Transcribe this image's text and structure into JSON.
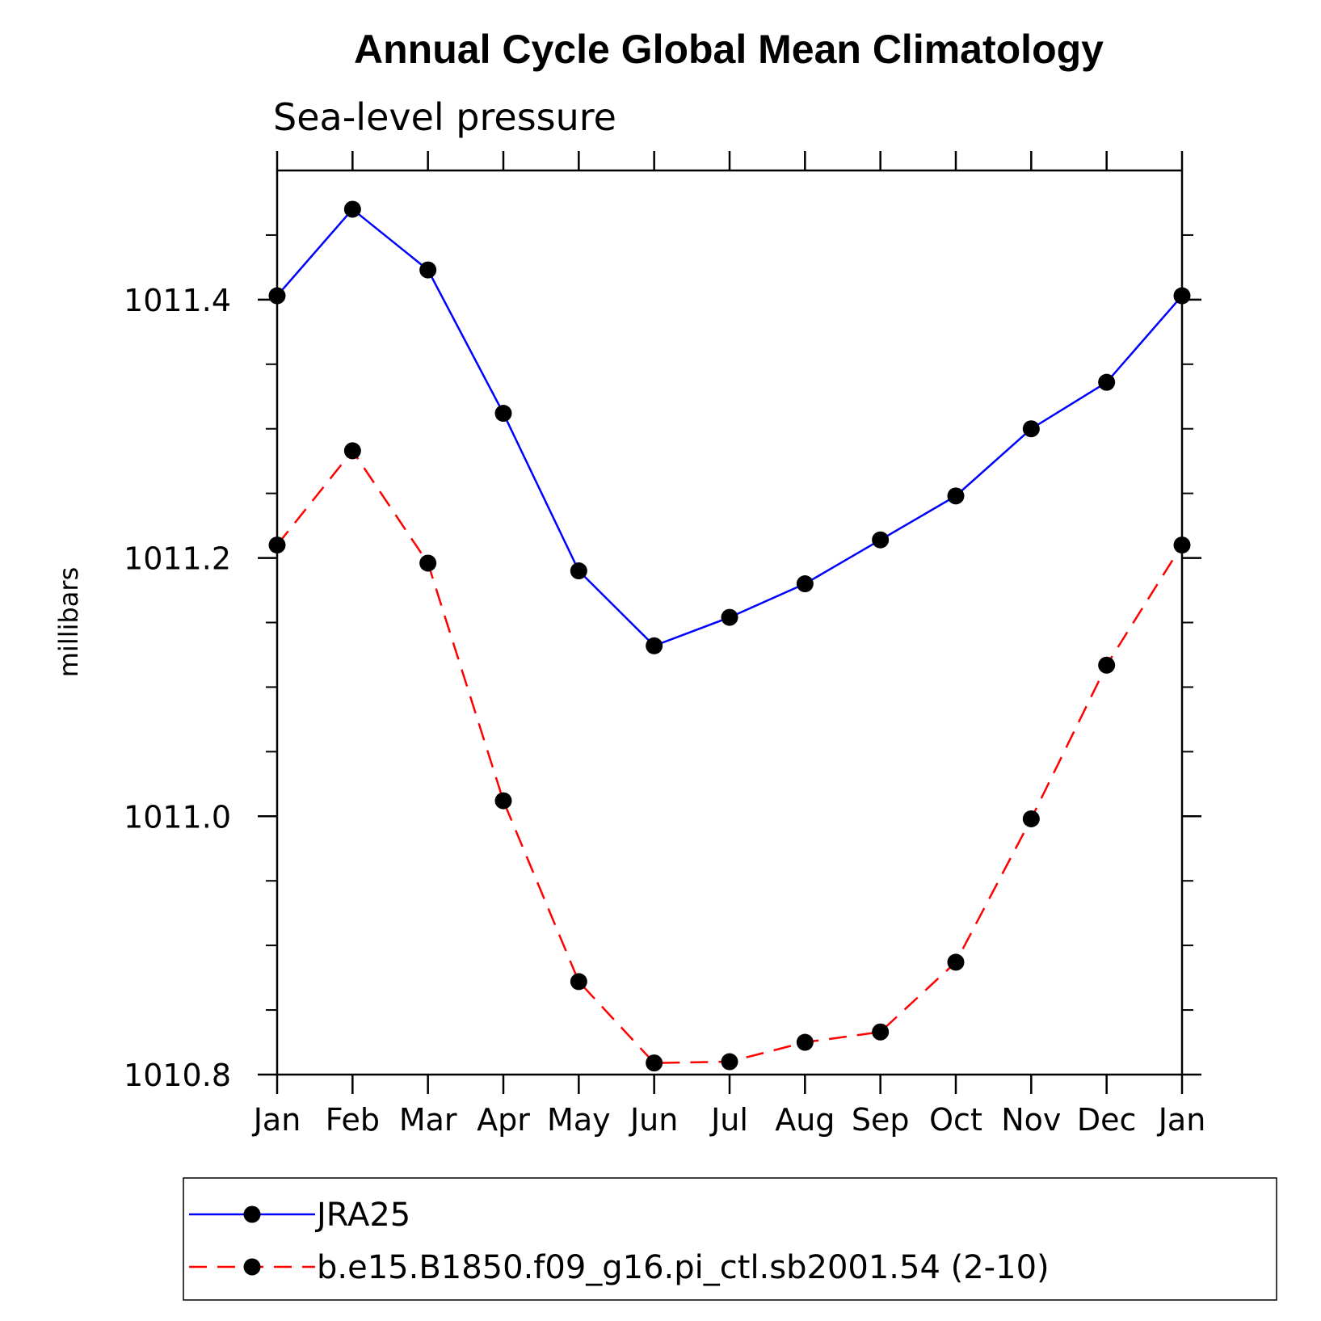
{
  "chart_data": {
    "type": "line",
    "title": "Annual Cycle Global Mean Climatology",
    "subtitle": "Sea-level pressure",
    "xlabel": "",
    "ylabel": "millibars",
    "categories": [
      "Jan",
      "Feb",
      "Mar",
      "Apr",
      "May",
      "Jun",
      "Jul",
      "Aug",
      "Sep",
      "Oct",
      "Nov",
      "Dec",
      "Jan"
    ],
    "ylim": [
      1010.8,
      1011.5
    ],
    "yticks": [
      1010.8,
      1011.0,
      1011.2,
      1011.4
    ],
    "ytick_labels": [
      "1010.8",
      "1011.0",
      "1011.2",
      "1011.4"
    ],
    "grid": false,
    "legend_position": "bottom",
    "series": [
      {
        "name": "JRA25",
        "color": "#0000ff",
        "line_style": "solid",
        "marker": "filled-circle",
        "values": [
          1011.403,
          1011.47,
          1011.423,
          1011.312,
          1011.19,
          1011.132,
          1011.154,
          1011.18,
          1011.214,
          1011.248,
          1011.3,
          1011.336,
          1011.403
        ]
      },
      {
        "name": "b.e15.B1850.f09_g16.pi_ctl.sb2001.54 (2-10)",
        "color": "#ff0000",
        "line_style": "dashed",
        "marker": "filled-circle",
        "values": [
          1011.21,
          1011.283,
          1011.196,
          1011.012,
          1010.872,
          1010.809,
          1010.81,
          1010.825,
          1010.833,
          1010.887,
          1010.998,
          1011.117,
          1011.21
        ]
      }
    ]
  }
}
